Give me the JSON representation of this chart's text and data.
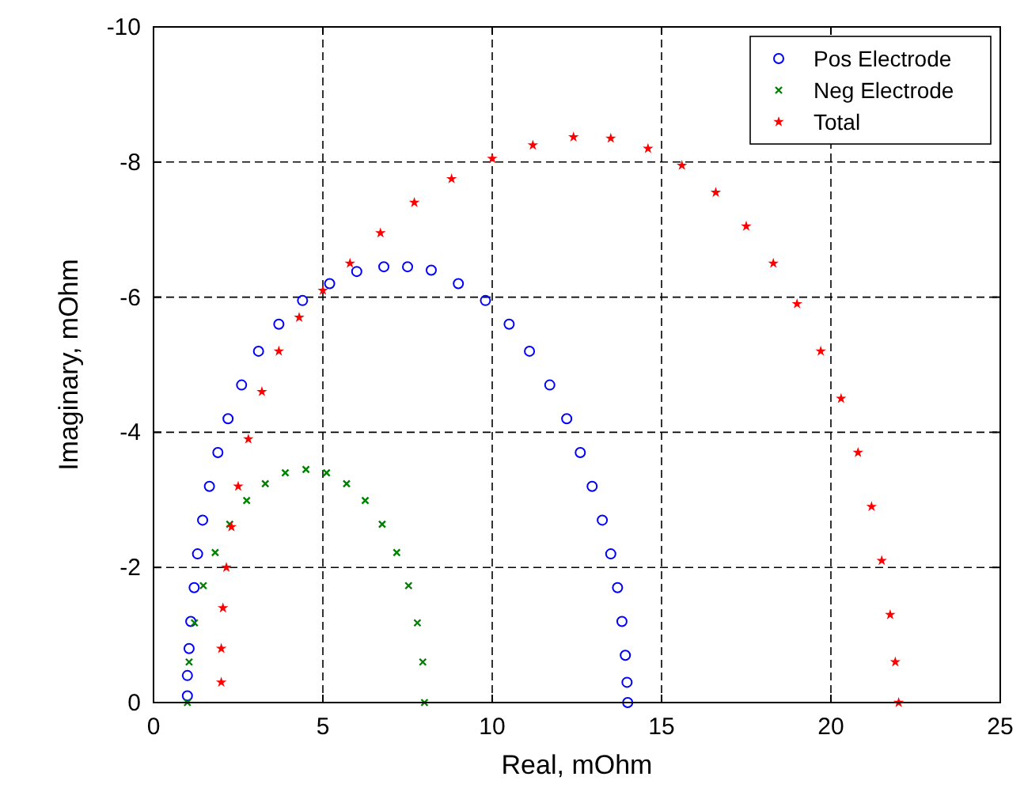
{
  "chart_data": {
    "type": "scatter",
    "xlabel": "Real, mOhm",
    "ylabel": "Imaginary, mOhm",
    "xlim": [
      0,
      25
    ],
    "ylim": [
      0,
      -10
    ],
    "xticks": [
      0,
      5,
      10,
      15,
      20,
      25
    ],
    "yticks": [
      0,
      -2,
      -4,
      -6,
      -8,
      -10
    ],
    "grid": true,
    "legend": "top right",
    "series": [
      {
        "name": "Pos Electrode",
        "color": "#0000ff",
        "marker": "circle",
        "x": [
          1.0,
          1.0,
          1.05,
          1.1,
          1.2,
          1.3,
          1.45,
          1.65,
          1.9,
          2.2,
          2.6,
          3.1,
          3.7,
          4.4,
          5.2,
          6.0,
          6.8,
          7.5,
          8.2,
          9.0,
          9.8,
          10.5,
          11.1,
          11.7,
          12.2,
          12.6,
          12.95,
          13.25,
          13.5,
          13.7,
          13.83,
          13.93,
          13.98,
          14.0
        ],
        "values": [
          -0.1,
          -0.4,
          -0.8,
          -1.2,
          -1.7,
          -2.2,
          -2.7,
          -3.2,
          -3.7,
          -4.2,
          -4.7,
          -5.2,
          -5.6,
          -5.95,
          -6.2,
          -6.38,
          -6.45,
          -6.45,
          -6.4,
          -6.2,
          -5.95,
          -5.6,
          -5.2,
          -4.7,
          -4.2,
          -3.7,
          -3.2,
          -2.7,
          -2.2,
          -1.7,
          -1.2,
          -0.7,
          -0.3,
          0
        ]
      },
      {
        "name": "Neg Electrode",
        "color": "#008000",
        "marker": "cross",
        "x": [
          1.0,
          1.05,
          1.21,
          1.47,
          1.82,
          2.25,
          2.75,
          3.3,
          3.89,
          4.5,
          5.11,
          5.7,
          6.25,
          6.75,
          7.18,
          7.53,
          7.79,
          7.95,
          8.0
        ],
        "values": [
          0,
          -0.6,
          -1.18,
          -1.73,
          -2.22,
          -2.64,
          -2.99,
          -3.24,
          -3.4,
          -3.45,
          -3.4,
          -3.24,
          -2.99,
          -2.64,
          -2.22,
          -1.73,
          -1.18,
          -0.6,
          0
        ]
      },
      {
        "name": "Total",
        "color": "#ff0000",
        "marker": "star",
        "x": [
          2.0,
          2.0,
          2.05,
          2.15,
          2.3,
          2.5,
          2.8,
          3.2,
          3.7,
          4.3,
          5.0,
          5.8,
          6.7,
          7.7,
          8.8,
          10.0,
          11.2,
          12.4,
          13.5,
          14.6,
          15.6,
          16.6,
          17.5,
          18.3,
          19.0,
          19.7,
          20.3,
          20.8,
          21.2,
          21.5,
          21.75,
          21.9,
          22.0
        ],
        "values": [
          -0.3,
          -0.8,
          -1.4,
          -2.0,
          -2.6,
          -3.2,
          -3.9,
          -4.6,
          -5.2,
          -5.7,
          -6.1,
          -6.5,
          -6.95,
          -7.4,
          -7.75,
          -8.05,
          -8.25,
          -8.37,
          -8.35,
          -8.2,
          -7.95,
          -7.55,
          -7.05,
          -6.5,
          -5.9,
          -5.2,
          -4.5,
          -3.7,
          -2.9,
          -2.1,
          -1.3,
          -0.6,
          0
        ]
      }
    ]
  }
}
